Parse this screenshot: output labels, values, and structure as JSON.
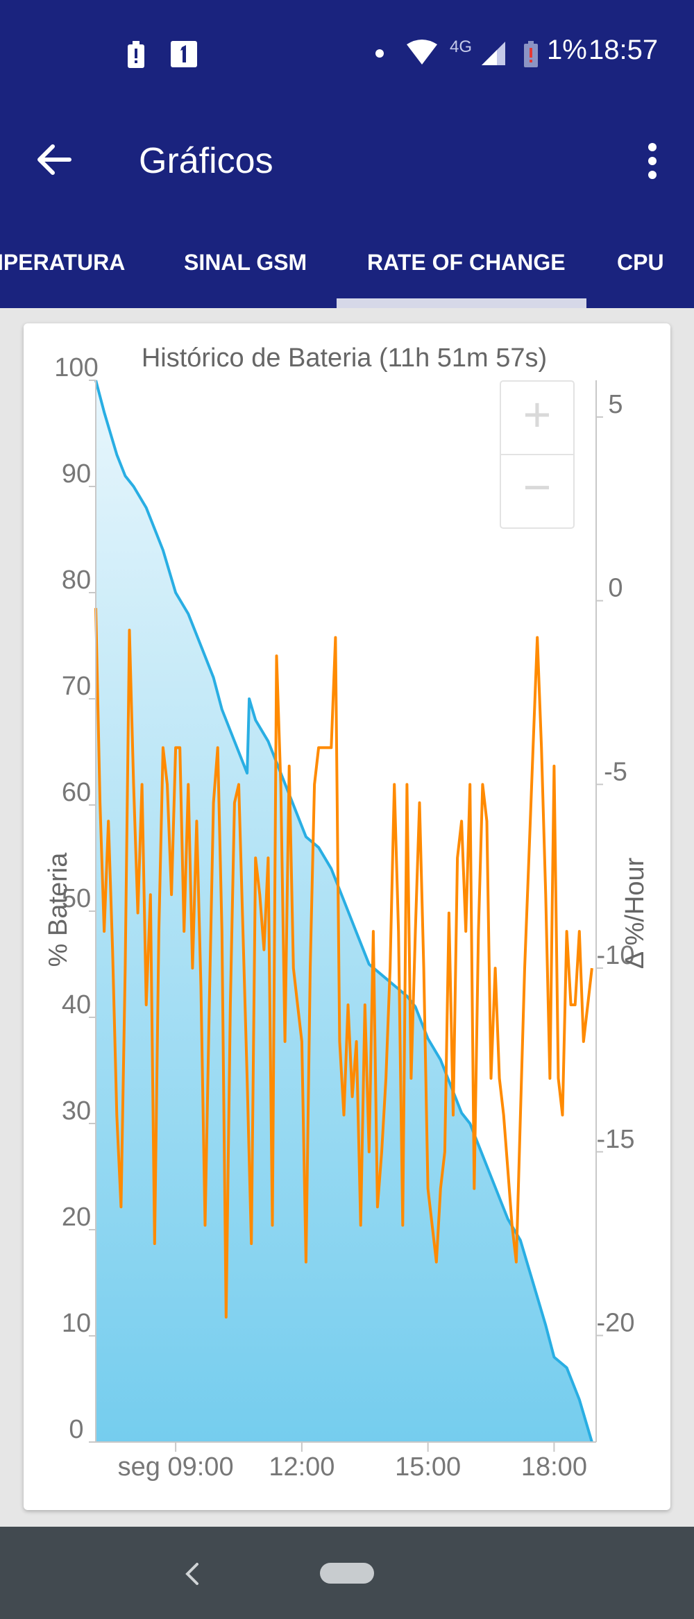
{
  "status_bar": {
    "network_label": "4G",
    "battery_percent": "1%",
    "time": "18:57",
    "icons": [
      "battery-alert-icon",
      "sim-one-icon",
      "notification-dot-icon",
      "wifi-icon",
      "cell-signal-icon",
      "battery-icon"
    ]
  },
  "toolbar": {
    "title": "Gráficos",
    "back_icon": "arrow-back-icon",
    "menu_icon": "more-vertical-icon"
  },
  "tabs": [
    {
      "label": "IPERATURA",
      "selected": false
    },
    {
      "label": "SINAL GSM",
      "selected": false
    },
    {
      "label": "RATE OF CHANGE",
      "selected": true
    },
    {
      "label": "CPU",
      "selected": false
    }
  ],
  "zoom": {
    "in_label": "+",
    "out_label": "−"
  },
  "colors": {
    "appbar": "#1a237e",
    "battery_line": "#29aee3",
    "rate_line": "#ff8a00",
    "fill_top": "#e8f6fc",
    "fill_bottom": "#75cdee"
  },
  "chart_data": {
    "type": "line",
    "title": "Histórico de Bateria (11h 51m 57s)",
    "ylabel": "% Bateria",
    "y2label": "Δ %/Hour",
    "ylim": [
      0,
      100
    ],
    "y2lim": [
      -22.9,
      6
    ],
    "xlim": [
      7.1,
      19.0
    ],
    "x_ticks": [
      {
        "value": 9,
        "label": "seg 09:00"
      },
      {
        "value": 12,
        "label": "12:00"
      },
      {
        "value": 15,
        "label": "15:00"
      },
      {
        "value": 18,
        "label": "18:00"
      }
    ],
    "y_ticks": [
      0,
      10,
      20,
      30,
      40,
      50,
      60,
      70,
      80,
      90,
      100
    ],
    "y2_ticks": [
      5,
      0,
      -5,
      -10,
      -15,
      -20
    ],
    "grid": false,
    "series": [
      {
        "name": "% Bateria",
        "axis": "left",
        "fill": true,
        "x": [
          7.1,
          7.3,
          7.6,
          7.8,
          8.0,
          8.3,
          8.7,
          9.0,
          9.3,
          9.6,
          9.9,
          10.1,
          10.4,
          10.7,
          10.75,
          10.9,
          11.2,
          11.5,
          11.8,
          12.1,
          12.4,
          12.7,
          13.0,
          13.3,
          13.6,
          13.9,
          14.2,
          14.5,
          14.7,
          15.0,
          15.3,
          15.6,
          15.8,
          16.0,
          16.3,
          16.6,
          16.9,
          17.2,
          17.5,
          17.8,
          18.0,
          18.3,
          18.6,
          18.9
        ],
        "y": [
          100,
          97,
          93,
          91,
          90,
          88,
          84,
          80,
          78,
          75,
          72,
          69,
          66,
          63,
          70,
          68,
          66,
          63,
          60,
          57,
          56,
          54,
          51,
          48,
          45,
          44,
          43,
          42,
          41,
          38,
          36,
          33,
          31,
          30,
          27,
          24,
          21,
          19,
          15,
          11,
          8,
          7,
          4,
          0
        ]
      },
      {
        "name": "Δ %/Hour",
        "axis": "right",
        "fill": false,
        "x": [
          7.1,
          7.2,
          7.3,
          7.4,
          7.5,
          7.6,
          7.7,
          7.8,
          7.9,
          8.0,
          8.1,
          8.2,
          8.3,
          8.4,
          8.5,
          8.6,
          8.7,
          8.8,
          8.9,
          9.0,
          9.1,
          9.2,
          9.3,
          9.4,
          9.5,
          9.6,
          9.7,
          9.8,
          9.9,
          10.0,
          10.1,
          10.2,
          10.3,
          10.4,
          10.5,
          10.6,
          10.7,
          10.8,
          10.9,
          11.0,
          11.1,
          11.2,
          11.3,
          11.4,
          11.5,
          11.6,
          11.7,
          11.8,
          11.9,
          12.0,
          12.1,
          12.2,
          12.3,
          12.4,
          12.5,
          12.6,
          12.7,
          12.8,
          12.9,
          13.0,
          13.1,
          13.2,
          13.3,
          13.4,
          13.5,
          13.6,
          13.7,
          13.8,
          13.9,
          14.0,
          14.1,
          14.2,
          14.3,
          14.4,
          14.5,
          14.6,
          14.7,
          14.8,
          14.9,
          15.0,
          15.1,
          15.2,
          15.3,
          15.4,
          15.5,
          15.6,
          15.7,
          15.8,
          15.9,
          16.0,
          16.1,
          16.2,
          16.3,
          16.4,
          16.5,
          16.6,
          16.7,
          16.8,
          16.9,
          17.0,
          17.1,
          17.2,
          17.3,
          17.4,
          17.5,
          17.6,
          17.7,
          17.8,
          17.9,
          18.0,
          18.1,
          18.2,
          18.3,
          18.4,
          18.5,
          18.6,
          18.7,
          18.8,
          18.9
        ],
        "y": [
          -0.2,
          -5.5,
          -9.0,
          -6.0,
          -9.5,
          -14.0,
          -16.5,
          -10.0,
          -0.8,
          -5.0,
          -8.5,
          -5.0,
          -11.0,
          -8.0,
          -17.5,
          -9.0,
          -4.0,
          -5.0,
          -8.0,
          -4.0,
          -4.0,
          -9.0,
          -5.0,
          -10.0,
          -6.0,
          -10.5,
          -17.0,
          -11.0,
          -5.5,
          -4.0,
          -9.0,
          -19.5,
          -11.0,
          -5.5,
          -5.0,
          -9.0,
          -13.0,
          -17.5,
          -7.0,
          -8.0,
          -9.5,
          -7.0,
          -17.0,
          -1.5,
          -5.0,
          -12.0,
          -4.5,
          -10.0,
          -11.0,
          -12.0,
          -18.0,
          -10.0,
          -5.0,
          -4.0,
          -4.0,
          -4.0,
          -4.0,
          -1.0,
          -12.0,
          -14.0,
          -11.0,
          -13.5,
          -12.0,
          -17.0,
          -11.0,
          -15.0,
          -9.0,
          -16.5,
          -15.0,
          -13.0,
          -10.0,
          -5.0,
          -9.0,
          -17.0,
          -5.0,
          -13.0,
          -9.0,
          -5.5,
          -10.0,
          -16.0,
          -17.0,
          -18.0,
          -16.0,
          -15.0,
          -8.5,
          -14.0,
          -7.0,
          -6.0,
          -9.0,
          -5.0,
          -16.0,
          -9.0,
          -5.0,
          -6.0,
          -13.0,
          -10.0,
          -13.0,
          -14.0,
          -15.5,
          -17.0,
          -18.0,
          -14.0,
          -10.0,
          -7.0,
          -4.0,
          -1.0,
          -4.0,
          -8.0,
          -13.0,
          -4.5,
          -13.0,
          -14.0,
          -9.0,
          -11.0,
          -11.0,
          -9.0,
          -12.0,
          -11.0,
          -10.0
        ]
      }
    ]
  }
}
